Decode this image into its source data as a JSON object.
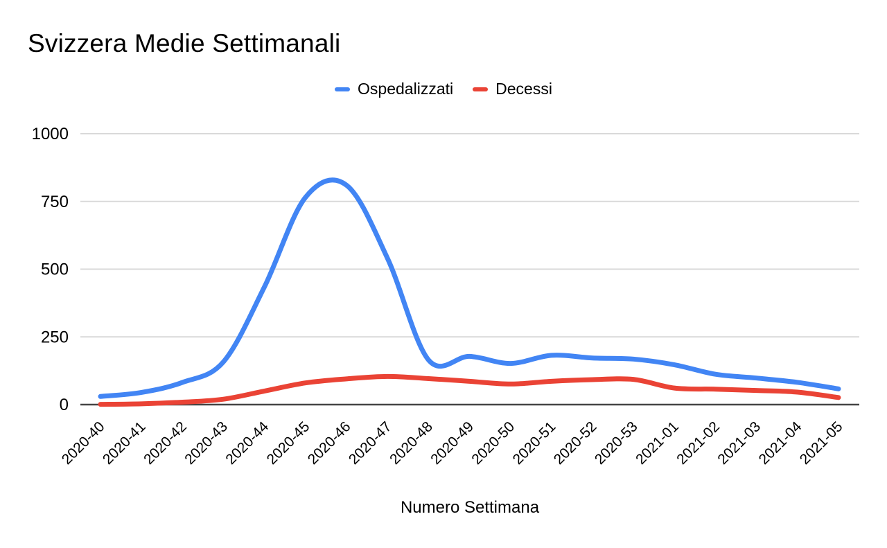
{
  "chart_data": {
    "type": "line",
    "title": "Svizzera Medie Settimanali",
    "xlabel": "Numero Settimana",
    "ylabel": "",
    "categories": [
      "2020-40",
      "2020-41",
      "2020-42",
      "2020-43",
      "2020-44",
      "2020-45",
      "2020-46",
      "2020-47",
      "2020-48",
      "2020-49",
      "2020-50",
      "2020-51",
      "2020-52",
      "2020-53",
      "2021-01",
      "2021-02",
      "2021-03",
      "2021-04",
      "2021-05"
    ],
    "series": [
      {
        "name": "Ospedalizzati",
        "color": "#4285F4",
        "values": [
          30,
          45,
          82,
          158,
          435,
          765,
          810,
          540,
          165,
          178,
          152,
          182,
          172,
          168,
          147,
          112,
          98,
          82,
          58
        ]
      },
      {
        "name": "Decessi",
        "color": "#EA4335",
        "values": [
          1,
          3,
          9,
          20,
          50,
          80,
          95,
          104,
          96,
          86,
          76,
          86,
          92,
          93,
          61,
          57,
          52,
          46,
          26
        ]
      }
    ],
    "y_ticks": [
      0,
      250,
      500,
      750,
      1000
    ],
    "ylim": [
      0,
      1000
    ],
    "grid": true,
    "legend_position": "top",
    "line_smoothing": true,
    "x_label_rotation": -45,
    "gridline_color": "#d9d9d9",
    "axis_line_color": "#444444",
    "text_color": "#000000",
    "background_color": "#ffffff"
  }
}
